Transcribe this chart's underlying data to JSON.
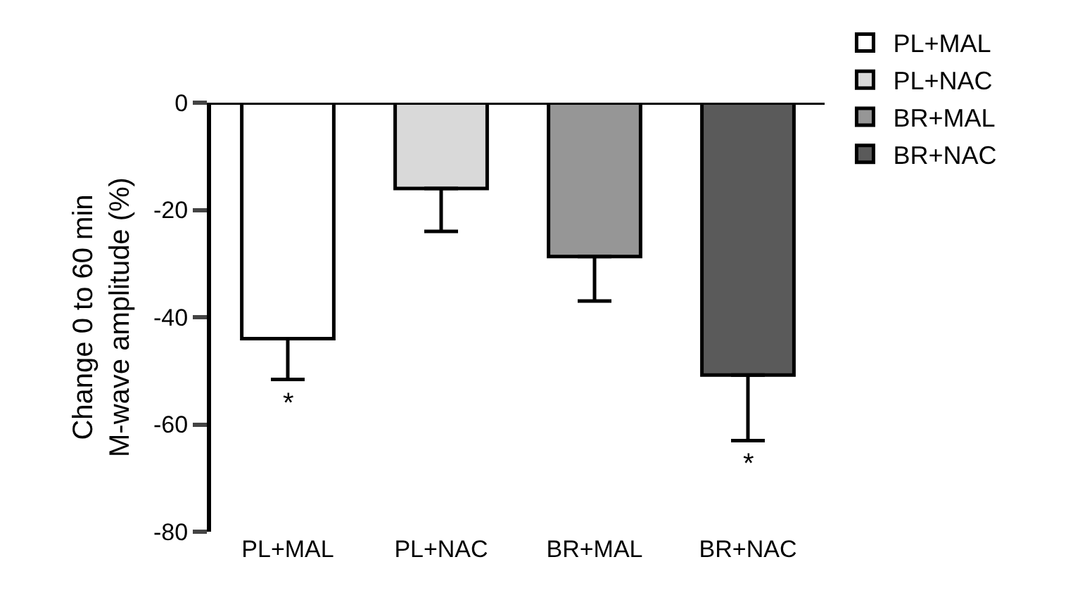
{
  "chart_data": {
    "type": "bar",
    "ylabel": "Change 0 to 60 min\nM-wave amplitude (%)",
    "categories": [
      "PL+MAL",
      "PL+NAC",
      "BR+MAL",
      "BR+NAC"
    ],
    "series": [
      {
        "name": "PL+MAL",
        "color": "#ffffff",
        "values": [
          -44,
          null,
          null,
          null
        ],
        "errors": [
          [
            -51.6,
            -44
          ],
          null,
          null,
          null
        ]
      },
      {
        "name": "PL+NAC",
        "color": "#d9d9d9",
        "values": [
          null,
          -16,
          null,
          null
        ],
        "errors": [
          null,
          [
            -24,
            -16
          ],
          null,
          null
        ]
      },
      {
        "name": "BR+MAL",
        "color": "#969696",
        "values": [
          null,
          null,
          -28.7,
          null
        ],
        "errors": [
          null,
          null,
          [
            -37,
            -28.7
          ],
          null
        ]
      },
      {
        "name": "BR+NAC",
        "color": "#5a5a5a",
        "values": [
          null,
          null,
          null,
          -50.8
        ],
        "errors": [
          null,
          null,
          null,
          [
            -63,
            -50.8
          ]
        ]
      }
    ],
    "ylim": [
      -80,
      0
    ],
    "yticks": [
      0,
      -20,
      -40,
      -60,
      -80
    ],
    "annotations": [
      {
        "text": "*",
        "x": "PL+MAL",
        "y": -51.6
      },
      {
        "text": "*",
        "x": "BR+NAC",
        "y": -63
      }
    ],
    "legend": "top right",
    "grid": false
  }
}
